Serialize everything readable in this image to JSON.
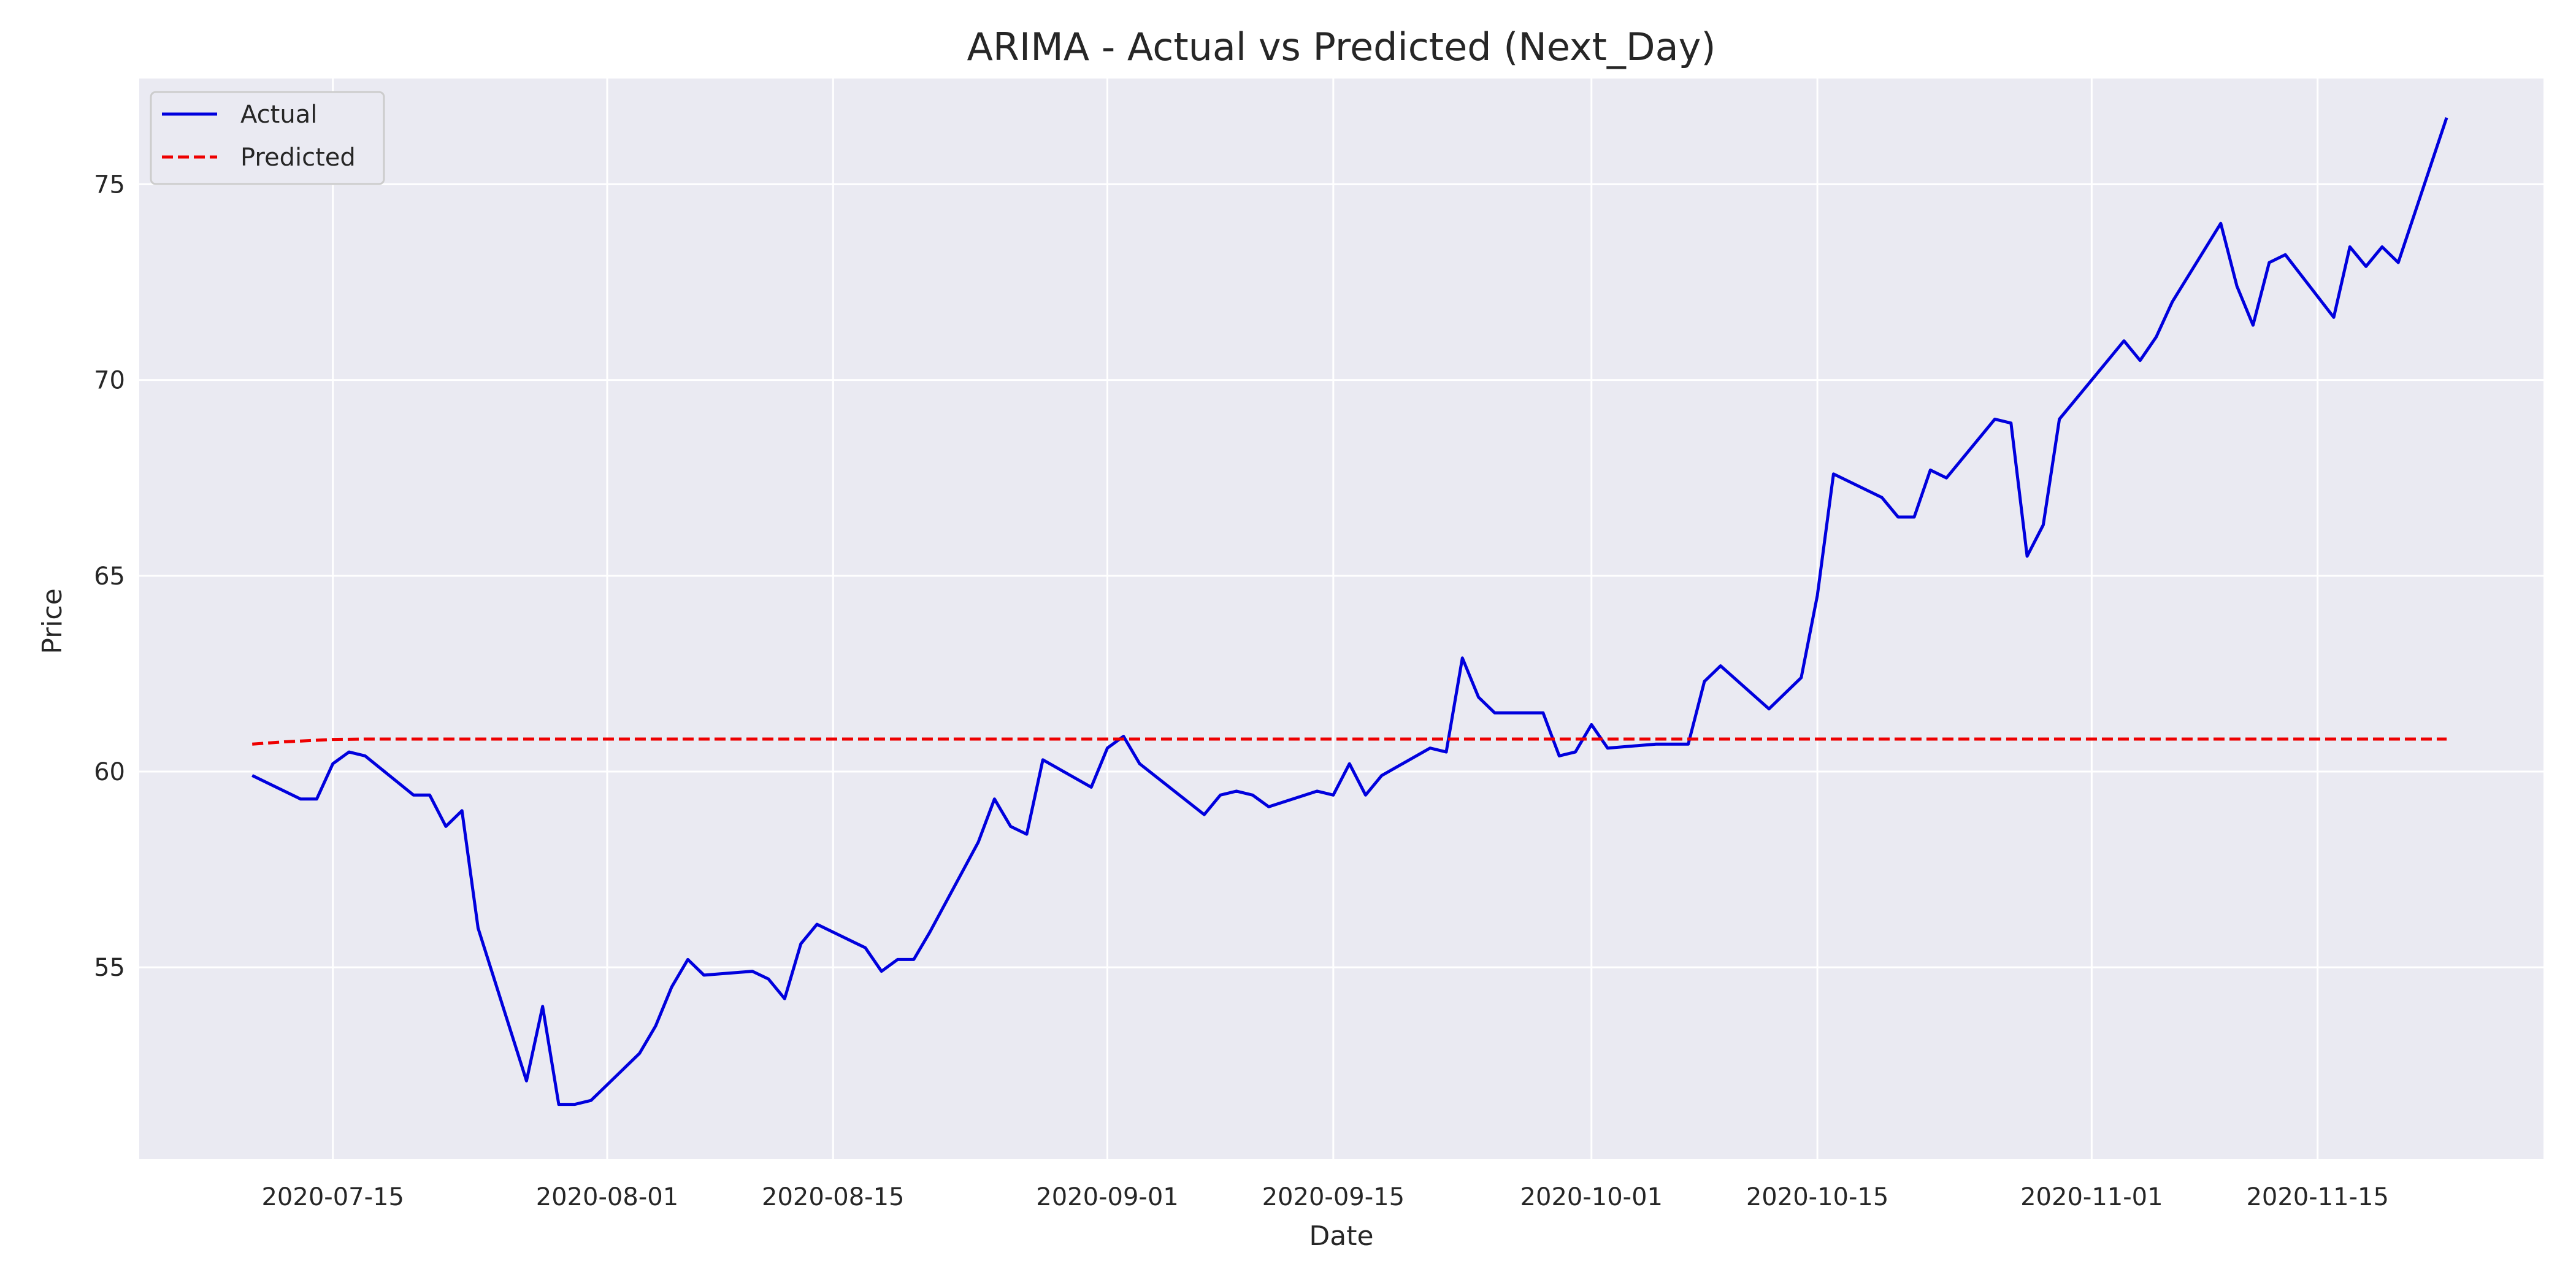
{
  "chart_data": {
    "type": "line",
    "title": "ARIMA - Actual vs Predicted (Next_Day)",
    "xlabel": "Date",
    "ylabel": "Price",
    "x_tick_labels": [
      "2020-07-15",
      "2020-08-01",
      "2020-08-15",
      "2020-09-01",
      "2020-09-15",
      "2020-10-01",
      "2020-10-15",
      "2020-11-01",
      "2020-11-15"
    ],
    "y_ticks": [
      55,
      60,
      65,
      70,
      75
    ],
    "xlim": [
      "2020-07-03",
      "2020-11-29"
    ],
    "ylim": [
      50.1,
      77.7
    ],
    "grid": true,
    "legend_position": "upper left",
    "colors": {
      "actual": "#0000dd",
      "predicted": "#ee0000",
      "plot_bg": "#eaeaf2",
      "grid": "#ffffff"
    },
    "series": [
      {
        "name": "Actual",
        "style": "solid",
        "points": [
          [
            "2020-07-10",
            59.9
          ],
          [
            "2020-07-13",
            59.3
          ],
          [
            "2020-07-14",
            59.3
          ],
          [
            "2020-07-15",
            60.2
          ],
          [
            "2020-07-16",
            60.5
          ],
          [
            "2020-07-17",
            60.4
          ],
          [
            "2020-07-20",
            59.4
          ],
          [
            "2020-07-21",
            59.4
          ],
          [
            "2020-07-22",
            58.6
          ],
          [
            "2020-07-23",
            59.0
          ],
          [
            "2020-07-24",
            56.0
          ],
          [
            "2020-07-27",
            52.1
          ],
          [
            "2020-07-28",
            54.0
          ],
          [
            "2020-07-29",
            51.5
          ],
          [
            "2020-07-30",
            51.5
          ],
          [
            "2020-07-31",
            51.6
          ],
          [
            "2020-08-03",
            52.8
          ],
          [
            "2020-08-04",
            53.5
          ],
          [
            "2020-08-05",
            54.5
          ],
          [
            "2020-08-06",
            55.2
          ],
          [
            "2020-08-07",
            54.8
          ],
          [
            "2020-08-10",
            54.9
          ],
          [
            "2020-08-11",
            54.7
          ],
          [
            "2020-08-12",
            54.2
          ],
          [
            "2020-08-13",
            55.6
          ],
          [
            "2020-08-14",
            56.1
          ],
          [
            "2020-08-17",
            55.5
          ],
          [
            "2020-08-18",
            54.9
          ],
          [
            "2020-08-19",
            55.2
          ],
          [
            "2020-08-20",
            55.2
          ],
          [
            "2020-08-21",
            55.9
          ],
          [
            "2020-08-24",
            58.2
          ],
          [
            "2020-08-25",
            59.3
          ],
          [
            "2020-08-26",
            58.6
          ],
          [
            "2020-08-27",
            58.4
          ],
          [
            "2020-08-28",
            60.3
          ],
          [
            "2020-08-31",
            59.6
          ],
          [
            "2020-09-01",
            60.6
          ],
          [
            "2020-09-02",
            60.9
          ],
          [
            "2020-09-03",
            60.2
          ],
          [
            "2020-09-07",
            58.9
          ],
          [
            "2020-09-08",
            59.4
          ],
          [
            "2020-09-09",
            59.5
          ],
          [
            "2020-09-10",
            59.4
          ],
          [
            "2020-09-11",
            59.1
          ],
          [
            "2020-09-14",
            59.5
          ],
          [
            "2020-09-15",
            59.4
          ],
          [
            "2020-09-16",
            60.2
          ],
          [
            "2020-09-17",
            59.4
          ],
          [
            "2020-09-18",
            59.9
          ],
          [
            "2020-09-21",
            60.6
          ],
          [
            "2020-09-22",
            60.5
          ],
          [
            "2020-09-23",
            62.9
          ],
          [
            "2020-09-24",
            61.9
          ],
          [
            "2020-09-25",
            61.5
          ],
          [
            "2020-09-28",
            61.5
          ],
          [
            "2020-09-29",
            60.4
          ],
          [
            "2020-09-30",
            60.5
          ],
          [
            "2020-10-01",
            61.2
          ],
          [
            "2020-10-02",
            60.6
          ],
          [
            "2020-10-05",
            60.7
          ],
          [
            "2020-10-06",
            60.7
          ],
          [
            "2020-10-07",
            60.7
          ],
          [
            "2020-10-08",
            62.3
          ],
          [
            "2020-10-09",
            62.7
          ],
          [
            "2020-10-12",
            61.6
          ],
          [
            "2020-10-13",
            62.0
          ],
          [
            "2020-10-14",
            62.4
          ],
          [
            "2020-10-15",
            64.5
          ],
          [
            "2020-10-16",
            67.6
          ],
          [
            "2020-10-19",
            67.0
          ],
          [
            "2020-10-20",
            66.5
          ],
          [
            "2020-10-21",
            66.5
          ],
          [
            "2020-10-22",
            67.7
          ],
          [
            "2020-10-23",
            67.5
          ],
          [
            "2020-10-26",
            69.0
          ],
          [
            "2020-10-27",
            68.9
          ],
          [
            "2020-10-28",
            65.5
          ],
          [
            "2020-10-29",
            66.3
          ],
          [
            "2020-10-30",
            69.0
          ],
          [
            "2020-11-02",
            70.5
          ],
          [
            "2020-11-03",
            71.0
          ],
          [
            "2020-11-04",
            70.5
          ],
          [
            "2020-11-05",
            71.1
          ],
          [
            "2020-11-06",
            72.0
          ],
          [
            "2020-11-09",
            74.0
          ],
          [
            "2020-11-10",
            72.4
          ],
          [
            "2020-11-11",
            71.4
          ],
          [
            "2020-11-12",
            73.0
          ],
          [
            "2020-11-13",
            73.2
          ],
          [
            "2020-11-16",
            71.6
          ],
          [
            "2020-11-17",
            73.4
          ],
          [
            "2020-11-18",
            72.9
          ],
          [
            "2020-11-19",
            73.4
          ],
          [
            "2020-11-20",
            73.0
          ],
          [
            "2020-11-23",
            76.7
          ]
        ]
      },
      {
        "name": "Predicted",
        "style": "dashed",
        "points": [
          [
            "2020-07-10",
            60.7
          ],
          [
            "2020-07-11",
            60.73
          ],
          [
            "2020-07-12",
            60.76
          ],
          [
            "2020-07-13",
            60.78
          ],
          [
            "2020-07-14",
            60.8
          ],
          [
            "2020-07-15",
            60.82
          ],
          [
            "2020-07-17",
            60.83
          ],
          [
            "2020-11-23",
            60.83
          ]
        ]
      }
    ]
  }
}
